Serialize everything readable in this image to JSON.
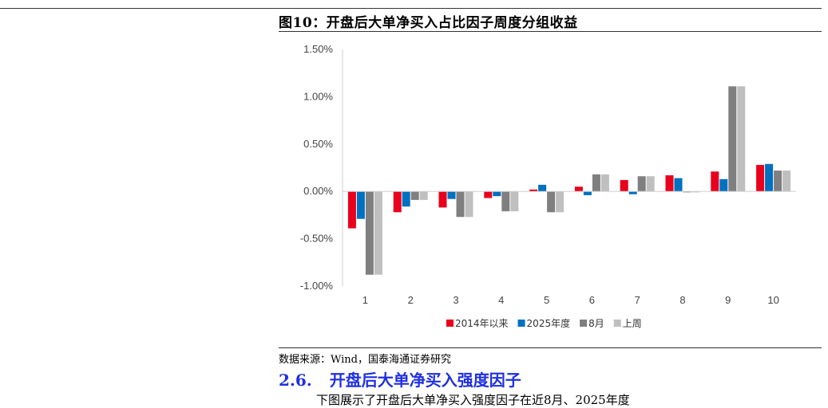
{
  "figure": {
    "title": "图10：开盘后大单净买入占比因子周度分组收益",
    "source": "数据来源：Wind，国泰海通证券研究"
  },
  "section": {
    "number": "2.6.",
    "title": "开盘后大单净买入强度因子",
    "body_fragment": "下图展示了开盘后大单净买入强度因子在近8月、2025年度"
  },
  "chart_data": {
    "type": "bar",
    "categories": [
      "1",
      "2",
      "3",
      "4",
      "5",
      "6",
      "7",
      "8",
      "9",
      "10"
    ],
    "series": [
      {
        "name": "2014年以来",
        "color": "#e8001c",
        "values": [
          -0.0039,
          -0.0022,
          -0.0017,
          -0.0007,
          0.0002,
          0.0005,
          0.0012,
          0.0017,
          0.0021,
          0.0028
        ]
      },
      {
        "name": "2025年度",
        "color": "#0070c0",
        "values": [
          -0.0029,
          -0.0016,
          -0.0008,
          -0.0005,
          0.0007,
          -0.0004,
          -0.0003,
          0.0014,
          0.0013,
          0.0029
        ]
      },
      {
        "name": "8月",
        "color": "#7f7f7f",
        "values": [
          -0.0088,
          -0.0009,
          -0.0027,
          -0.0021,
          -0.0022,
          0.0018,
          0.0016,
          -0.0001,
          0.0111,
          0.0022
        ]
      },
      {
        "name": "上周",
        "color": "#bfbfbf",
        "values": [
          -0.0088,
          -0.0009,
          -0.0027,
          -0.0021,
          -0.0022,
          0.0018,
          0.0016,
          -0.0001,
          0.0111,
          0.0022
        ]
      }
    ],
    "yticks": [
      "1.50%",
      "1.00%",
      "0.50%",
      "0.00%",
      "-0.50%",
      "-1.00%"
    ],
    "ylim": [
      -0.01,
      0.015
    ],
    "grid": false,
    "legend_position": "bottom"
  }
}
